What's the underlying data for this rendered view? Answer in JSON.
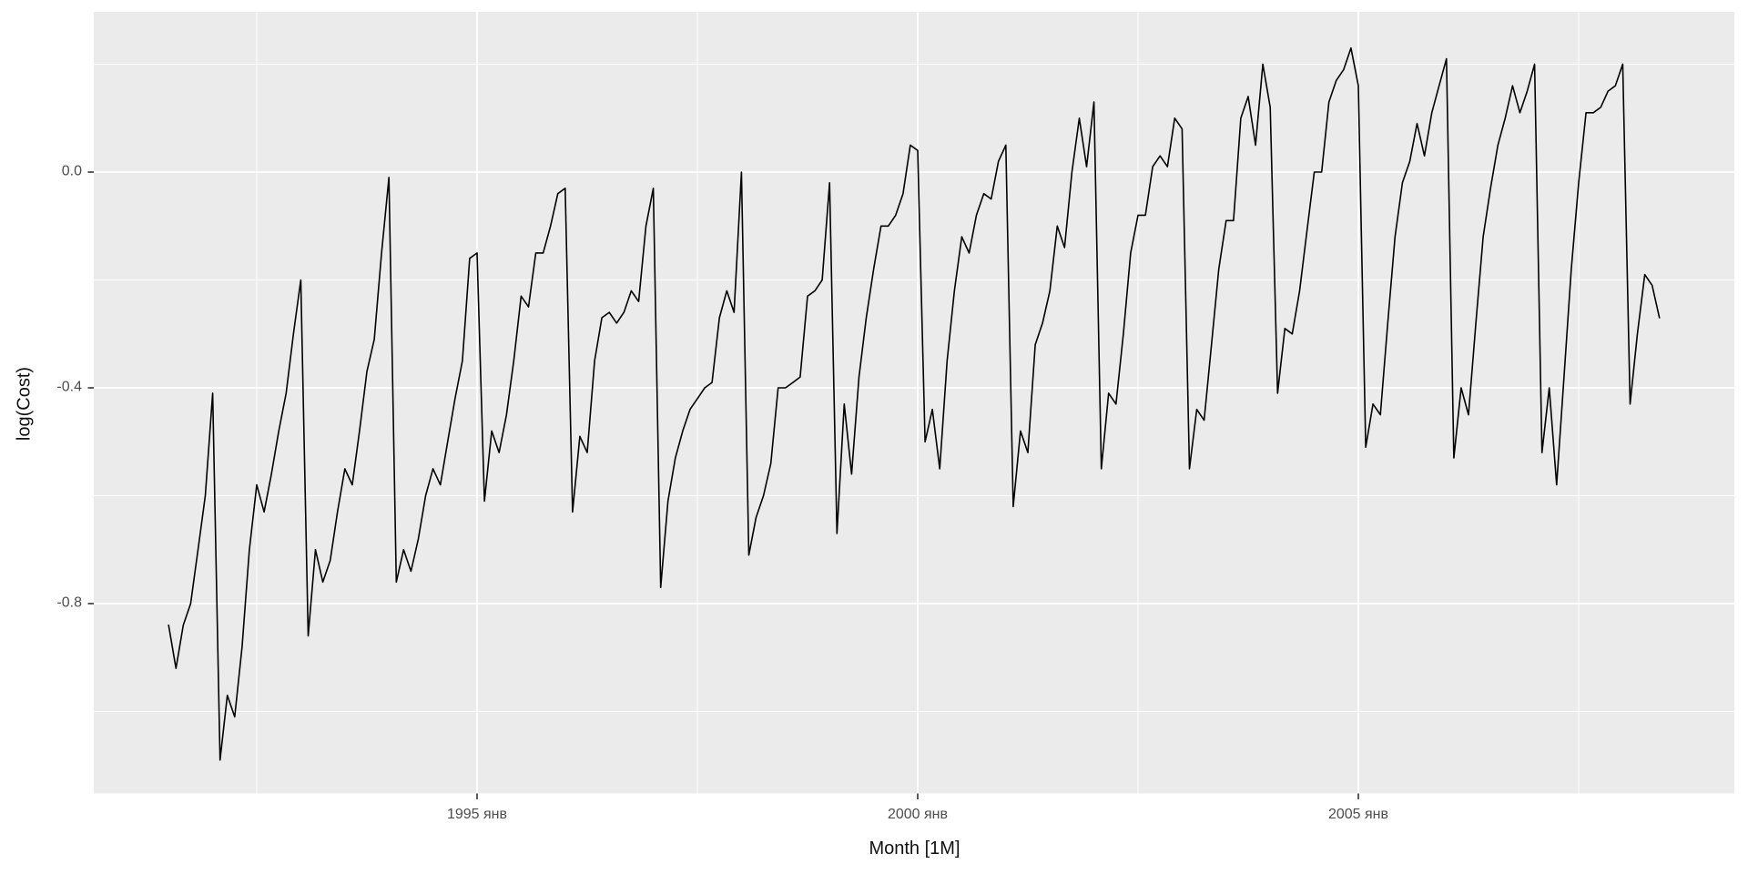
{
  "figure": {
    "background": "#FFFFFF",
    "panel_background": "#EBEBEB",
    "grid_color": "#FFFFFF",
    "series_color": "#000000",
    "tick_label_color": "#4D4D4D",
    "axis_title_color": "#111111"
  },
  "chart_data": {
    "type": "line",
    "title": "",
    "xlabel": "Month [1M]",
    "ylabel": "log(Cost)",
    "legend": "none",
    "grid": "on",
    "frequency": "monthly",
    "x_start": "1991-07",
    "x_end": "2008-06",
    "ylim": [
      -1.153,
      0.297
    ],
    "y_axis": {
      "major_ticks": [
        {
          "label": "0.0",
          "value": 0.0
        },
        {
          "label": "-0.4",
          "value": -0.4
        },
        {
          "label": "-0.8",
          "value": -0.8
        }
      ],
      "minor_gridlines": [
        0.2,
        -0.2,
        -0.6,
        -1.0
      ]
    },
    "x_axis": {
      "major_ticks": [
        {
          "label": "1995 янв",
          "month": "1995-01"
        },
        {
          "label": "2000 янв",
          "month": "2000-01"
        },
        {
          "label": "2005 янв",
          "month": "2005-01"
        }
      ],
      "minor_gridlines": [
        "1992-07",
        "1997-07",
        "2002-07",
        "2007-07"
      ]
    },
    "series": [
      {
        "name": "log(Cost)",
        "start_month": "1991-07",
        "values": [
          -0.84,
          -0.92,
          -0.84,
          -0.8,
          -0.7,
          -0.6,
          -0.41,
          -1.09,
          -0.97,
          -1.01,
          -0.88,
          -0.7,
          -0.58,
          -0.63,
          -0.56,
          -0.48,
          -0.41,
          -0.3,
          -0.2,
          -0.86,
          -0.7,
          -0.76,
          -0.72,
          -0.63,
          -0.55,
          -0.58,
          -0.48,
          -0.37,
          -0.31,
          -0.15,
          -0.01,
          -0.76,
          -0.7,
          -0.74,
          -0.68,
          -0.6,
          -0.55,
          -0.58,
          -0.5,
          -0.42,
          -0.35,
          -0.16,
          -0.15,
          -0.61,
          -0.48,
          -0.52,
          -0.45,
          -0.35,
          -0.23,
          -0.25,
          -0.15,
          -0.15,
          -0.1,
          -0.04,
          -0.03,
          -0.63,
          -0.49,
          -0.52,
          -0.35,
          -0.27,
          -0.26,
          -0.28,
          -0.26,
          -0.22,
          -0.24,
          -0.1,
          -0.03,
          -0.77,
          -0.61,
          -0.53,
          -0.48,
          -0.44,
          -0.42,
          -0.4,
          -0.39,
          -0.27,
          -0.22,
          -0.26,
          0.0,
          -0.71,
          -0.64,
          -0.6,
          -0.54,
          -0.4,
          -0.4,
          -0.39,
          -0.38,
          -0.23,
          -0.22,
          -0.2,
          -0.02,
          -0.67,
          -0.43,
          -0.56,
          -0.38,
          -0.27,
          -0.18,
          -0.1,
          -0.1,
          -0.08,
          -0.04,
          0.05,
          0.04,
          -0.5,
          -0.44,
          -0.55,
          -0.35,
          -0.22,
          -0.12,
          -0.15,
          -0.08,
          -0.04,
          -0.05,
          0.02,
          0.05,
          -0.62,
          -0.48,
          -0.52,
          -0.32,
          -0.28,
          -0.22,
          -0.1,
          -0.14,
          0.0,
          0.1,
          0.01,
          0.13,
          -0.55,
          -0.41,
          -0.43,
          -0.3,
          -0.15,
          -0.08,
          -0.08,
          0.01,
          0.03,
          0.01,
          0.1,
          0.08,
          -0.55,
          -0.44,
          -0.46,
          -0.32,
          -0.18,
          -0.09,
          -0.09,
          0.1,
          0.14,
          0.05,
          0.2,
          0.12,
          -0.41,
          -0.29,
          -0.3,
          -0.22,
          -0.11,
          0.0,
          0.0,
          0.13,
          0.17,
          0.19,
          0.23,
          0.16,
          -0.51,
          -0.43,
          -0.45,
          -0.28,
          -0.12,
          -0.02,
          0.02,
          0.09,
          0.03,
          0.11,
          0.16,
          0.21,
          -0.53,
          -0.4,
          -0.45,
          -0.28,
          -0.12,
          -0.03,
          0.05,
          0.1,
          0.16,
          0.11,
          0.15,
          0.2,
          -0.52,
          -0.4,
          -0.58,
          -0.38,
          -0.18,
          -0.02,
          0.11,
          0.11,
          0.12,
          0.15,
          0.16,
          0.2,
          -0.43,
          -0.3,
          -0.19,
          -0.21,
          -0.27
        ]
      }
    ]
  }
}
